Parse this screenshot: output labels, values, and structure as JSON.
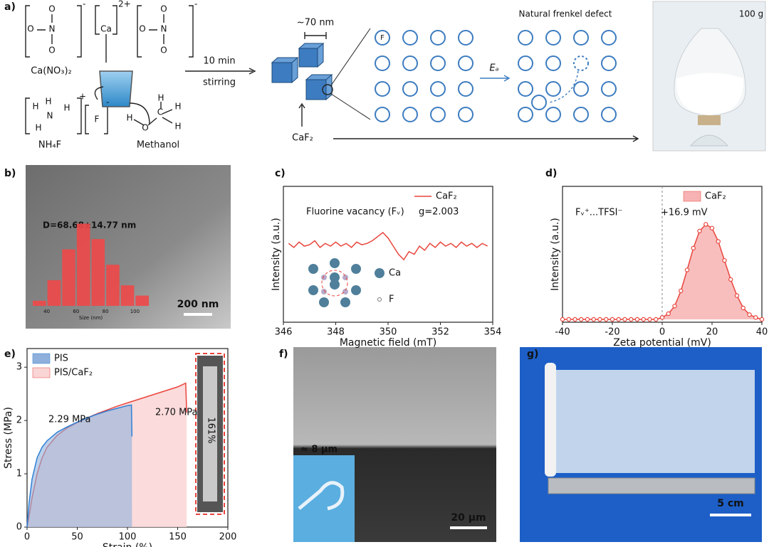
{
  "panels": {
    "a": {
      "label": "a)",
      "nitrate_atoms": [
        "O",
        "N",
        "O",
        "O"
      ],
      "nitrate_charge": "-",
      "calcium": "Ca",
      "calcium_charge": "2+",
      "ammonium_atoms": [
        "H",
        "H",
        "N",
        "H",
        "H"
      ],
      "ammonium_charge": "+",
      "fluoride": "F",
      "fluoride_charge": "-",
      "methanol_atoms": [
        "H",
        "O",
        "C",
        "H",
        "H",
        "H"
      ],
      "calcium_nitrate": "Ca(NO₃)₂",
      "ammonium_fluoride": "NH₄F",
      "methanol": "Methanol",
      "step_time": "10 min",
      "step_action": "stirring",
      "size": "~70 nm",
      "product": "CaF₂",
      "lattice_atom": "F",
      "defect_title": "Natural frenkel defect",
      "energy": "Eₐ",
      "photo_mass": "100 g"
    },
    "b": {
      "label": "b)",
      "scale": "200 nm"
    },
    "c": {
      "label": "c)",
      "atom_ca": "Ca",
      "atom_f": "F"
    },
    "d": {
      "label": "d)"
    },
    "e": {
      "label": "e)"
    },
    "f": {
      "label": "f)",
      "thickness": "≈ 8 μm",
      "scale": "20 μm"
    },
    "g": {
      "label": "g)",
      "scale": "5 cm"
    }
  },
  "chart_data": [
    {
      "type": "histogram",
      "title": "D=68.68±14.77 nm",
      "xlabel": "Size (nm)",
      "bins": [
        30,
        40,
        50,
        60,
        70,
        80,
        90,
        100,
        110
      ],
      "values": [
        1,
        5,
        11,
        16,
        13,
        8,
        4,
        2
      ],
      "color": "#f04848",
      "xlim": [
        30,
        110
      ],
      "ylim": [
        0,
        18
      ],
      "xticks": [
        40,
        60,
        80,
        100
      ]
    },
    {
      "type": "line",
      "xlabel": "Magnetic field (mT)",
      "ylabel": "Intensity (a.u.)",
      "frame": true,
      "legend": "top-right",
      "legend_marker": "line",
      "x": [
        346.2,
        346.4,
        346.6,
        346.8,
        347.0,
        347.2,
        347.4,
        347.6,
        347.8,
        348.0,
        348.2,
        348.4,
        348.6,
        348.8,
        349.0,
        349.2,
        349.4,
        349.6,
        349.8,
        350.0,
        350.2,
        350.4,
        350.6,
        350.8,
        351.0,
        351.2,
        351.4,
        351.6,
        351.8,
        352.0,
        352.2,
        352.4,
        352.6,
        352.8,
        353.0,
        353.2,
        353.4,
        353.6,
        353.8
      ],
      "series": [
        {
          "name": "CaF₂",
          "color": "#e8453c",
          "values": [
            5.8,
            5.5,
            5.9,
            5.6,
            5.7,
            6.0,
            5.5,
            5.8,
            5.6,
            5.9,
            5.6,
            5.8,
            5.5,
            5.9,
            5.7,
            5.8,
            6.0,
            6.3,
            6.6,
            6.2,
            5.6,
            5.0,
            4.6,
            5.2,
            5.0,
            5.6,
            5.3,
            5.8,
            5.5,
            5.9,
            5.6,
            5.8,
            5.5,
            5.9,
            5.6,
            5.8,
            5.5,
            5.8,
            5.6
          ]
        }
      ],
      "xlim": [
        346,
        354
      ],
      "ylim": [
        0,
        10
      ],
      "xticks": [
        346,
        348,
        350,
        352,
        354
      ],
      "annotations": [
        {
          "text": "Fluorine vacancy (Fᵥ)"
        },
        {
          "text": "g=2.003"
        }
      ]
    },
    {
      "type": "line",
      "xlabel": "Zeta potential (mV)",
      "ylabel": "Intensity (a.u.)",
      "frame": true,
      "legend": "top-right",
      "legend_marker": "patch",
      "markers": true,
      "fill": true,
      "reference_line": 0,
      "x": [
        -40,
        -37.5,
        -35,
        -32.5,
        -30,
        -27.5,
        -25,
        -22.5,
        -20,
        -17.5,
        -15,
        -12.5,
        -10,
        -7.5,
        -5,
        -2.5,
        0,
        2.5,
        5,
        7.5,
        10,
        12.5,
        15,
        17.5,
        20,
        22.5,
        25,
        27.5,
        30,
        32.5,
        35,
        37.5,
        40
      ],
      "series": [
        {
          "name": "CaF₂",
          "color": "#e8453c",
          "fill": "#f7b3b3",
          "values": [
            0,
            0,
            0,
            0,
            0,
            0,
            0,
            0,
            0,
            0,
            0,
            0,
            0,
            0,
            0,
            0,
            2,
            6,
            14,
            30,
            52,
            75,
            93,
            100,
            96,
            82,
            62,
            42,
            25,
            12,
            5,
            2,
            0
          ]
        }
      ],
      "xlim": [
        -40,
        40
      ],
      "ylim": [
        -3,
        140
      ],
      "xticks": [
        -40,
        -20,
        0,
        20,
        40
      ],
      "annotations": [
        {
          "text": "Fᵥ⁺...TFSI⁻"
        },
        {
          "text": "+16.9 mV"
        }
      ]
    },
    {
      "type": "line",
      "xlabel": "Strain (%)",
      "ylabel": "Stress (MPa)",
      "frame": true,
      "legend": "top-left",
      "legend_marker": "patch",
      "fill": true,
      "series": [
        {
          "name": "PIS",
          "color": "#2f7fd6",
          "fill": "#8fb0dc",
          "x": [
            0,
            2,
            5,
            10,
            15,
            20,
            30,
            40,
            50,
            60,
            70,
            80,
            90,
            100,
            104,
            104.5
          ],
          "values": [
            0,
            0.45,
            0.9,
            1.3,
            1.5,
            1.62,
            1.78,
            1.88,
            1.97,
            2.05,
            2.12,
            2.18,
            2.23,
            2.28,
            2.29,
            1.7
          ]
        },
        {
          "name": "PIS/CaF₂",
          "color": "#e8453c",
          "fill": "#fad5d5",
          "x": [
            0,
            2,
            5,
            10,
            15,
            20,
            30,
            40,
            50,
            60,
            70,
            80,
            90,
            100,
            110,
            120,
            130,
            140,
            150,
            158,
            159
          ],
          "values": [
            0,
            0.2,
            0.55,
            1.0,
            1.3,
            1.5,
            1.72,
            1.86,
            1.96,
            2.05,
            2.13,
            2.2,
            2.27,
            2.33,
            2.39,
            2.45,
            2.51,
            2.57,
            2.63,
            2.7,
            2.15
          ]
        }
      ],
      "xlim": [
        0,
        200
      ],
      "ylim": [
        0,
        3.35
      ],
      "xticks": [
        0,
        50,
        100,
        150,
        200
      ],
      "yticks": [
        0,
        1,
        2,
        3
      ],
      "annotations": [
        {
          "text": "2.29 MPa",
          "color": "#2f7fd6"
        },
        {
          "text": "2.70 MPa",
          "color": "#e8453c"
        },
        {
          "text": "161%",
          "color": "#e8453c"
        }
      ]
    }
  ]
}
